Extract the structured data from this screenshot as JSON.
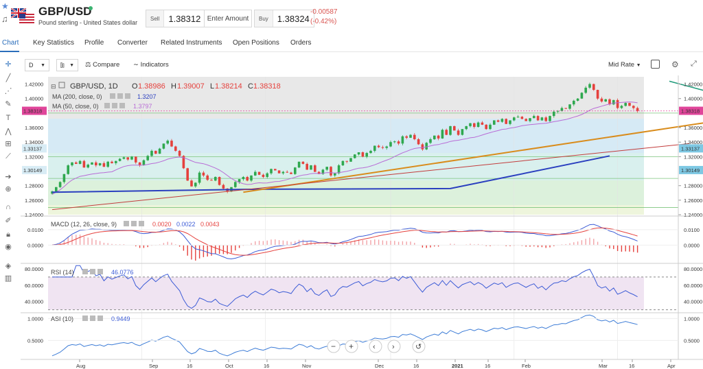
{
  "header": {
    "symbol": "GBP/USD",
    "description": "Pound sterling - United States dollar",
    "sell_label": "Sell",
    "sell_price": "1.38312",
    "enter_amount": "Enter Amount",
    "buy_label": "Buy",
    "buy_price": "1.38324",
    "change_abs": "-0.00587",
    "change_pct": "(-0.42%)"
  },
  "tabs": [
    {
      "label": "Chart"
    },
    {
      "label": "Key Statistics"
    },
    {
      "label": "Profile"
    },
    {
      "label": "Converter"
    },
    {
      "label": "Related Instruments"
    },
    {
      "label": "Open Positions"
    },
    {
      "label": "Orders"
    }
  ],
  "toolbar": {
    "interval": "D",
    "compare": "Compare",
    "indicators": "Indicators",
    "price_type": "Mid Rate"
  },
  "colors": {
    "up": "#2fa84f",
    "down": "#e5413d",
    "ma200": "#2a3fbf",
    "ma50": "#b86bd6",
    "trend_support": "#d98c1c",
    "trend_red": "#c23b3b",
    "trend_resistance": "#1e9a7a",
    "macd": "#3b5bd6",
    "signal": "#e5413d",
    "rsi": "#3b5bd6",
    "asi": "#3b7bd6"
  },
  "legend": {
    "main_title": "GBP/USD, 1D",
    "o_label": "O",
    "o_value": "1.38986",
    "h_label": "H",
    "h_value": "1.39007",
    "l_label": "L",
    "l_value": "1.38214",
    "c_label": "C",
    "c_value": "1.38318",
    "ma200_label": "MA (200, close, 0)",
    "ma200_value": "1.3207",
    "ma50_label": "MA (50, close, 0)",
    "ma50_value": "1.3797",
    "macd_label": "MACD (12, 26, close, 9)",
    "macd_v1": "0.0020",
    "macd_v2": "0.0022",
    "macd_v3": "0.0043",
    "rsi_label": "RSI (14)",
    "rsi_value": "46.0776",
    "asi_label": "ASI (10)",
    "asi_value": "0.9449"
  },
  "price_axis": {
    "ticks": [
      "1.42000",
      "1.40000",
      "1.36000",
      "1.34000",
      "1.32000",
      "1.28000",
      "1.26000",
      "1.24000"
    ],
    "badges": [
      {
        "text": "1.38318",
        "value": 1.38318,
        "color": "#e0459a"
      },
      {
        "text": "1.33137",
        "value": 1.33137,
        "color": "#7ec8e3"
      },
      {
        "text": "1.30149",
        "value": 1.30149,
        "color": "#7ec8e3"
      }
    ],
    "left_badges": [
      {
        "text": "1.38318",
        "value": 1.38318,
        "color": "#e0459a"
      },
      {
        "text": "1.33137",
        "value": 1.33137,
        "color": "#d8ecf5"
      },
      {
        "text": "1.30149",
        "value": 1.30149,
        "color": "#d8ecf5"
      }
    ]
  },
  "macd_axis": {
    "ticks": [
      "0.0100",
      "0.0000"
    ]
  },
  "rsi_axis": {
    "ticks": [
      "80.0000",
      "60.0000",
      "40.0000"
    ]
  },
  "asi_axis": {
    "ticks": [
      "1.0000",
      "0.5000"
    ]
  },
  "time_axis": {
    "labels": [
      "Aug",
      "Sep",
      "16",
      "Oct",
      "16",
      "Nov",
      "Dec",
      "16",
      "2021",
      "16",
      "Feb",
      "Mar",
      "16",
      "Apr"
    ]
  },
  "chart_data": {
    "type": "candlestick",
    "symbol": "GBP/USD",
    "interval": "1D",
    "ylim": [
      1.24,
      1.43
    ],
    "price_zones": [
      1.25,
      1.29,
      1.32,
      1.38
    ],
    "closes": [
      1.272,
      1.278,
      1.285,
      1.296,
      1.308,
      1.312,
      1.31,
      1.314,
      1.305,
      1.309,
      1.312,
      1.308,
      1.311,
      1.306,
      1.313,
      1.311,
      1.314,
      1.317,
      1.319,
      1.316,
      1.32,
      1.312,
      1.308,
      1.315,
      1.321,
      1.328,
      1.324,
      1.331,
      1.338,
      1.342,
      1.334,
      1.328,
      1.321,
      1.304,
      1.287,
      1.279,
      1.284,
      1.298,
      1.294,
      1.288,
      1.287,
      1.292,
      1.281,
      1.276,
      1.272,
      1.278,
      1.285,
      1.289,
      1.292,
      1.287,
      1.294,
      1.299,
      1.295,
      1.292,
      1.297,
      1.303,
      1.301,
      1.297,
      1.299,
      1.298,
      1.296,
      1.305,
      1.313,
      1.31,
      1.302,
      1.308,
      1.299,
      1.296,
      1.302,
      1.306,
      1.294,
      1.297,
      1.308,
      1.314,
      1.313,
      1.318,
      1.323,
      1.326,
      1.32,
      1.325,
      1.328,
      1.335,
      1.333,
      1.332,
      1.334,
      1.34,
      1.341,
      1.338,
      1.348,
      1.346,
      1.35,
      1.344,
      1.337,
      1.33,
      1.339,
      1.344,
      1.349,
      1.345,
      1.357,
      1.35,
      1.362,
      1.356,
      1.35,
      1.358,
      1.362,
      1.366,
      1.361,
      1.367,
      1.364,
      1.358,
      1.364,
      1.37,
      1.368,
      1.372,
      1.365,
      1.37,
      1.374,
      1.375,
      1.372,
      1.369,
      1.373,
      1.376,
      1.37,
      1.374,
      1.369,
      1.376,
      1.382,
      1.383,
      1.387,
      1.386,
      1.392,
      1.397,
      1.4,
      1.408,
      1.415,
      1.42,
      1.412,
      1.4,
      1.396,
      1.399,
      1.392,
      1.398,
      1.387,
      1.39,
      1.394,
      1.39,
      1.387,
      1.383
    ],
    "ma200_endpoints": [
      [
        0,
        1.271
      ],
      [
        50,
        1.275
      ],
      [
        100,
        1.276
      ],
      [
        140,
        1.321
      ]
    ],
    "trendlines": [
      {
        "name": "support",
        "from": [
          48,
          1.271
        ],
        "to": [
          180,
          1.38
        ]
      },
      {
        "name": "red",
        "from": [
          0,
          1.247
        ],
        "to": [
          160,
          1.338
        ]
      },
      {
        "name": "resistance",
        "from": [
          155,
          1.424
        ],
        "to": [
          180,
          1.387
        ]
      }
    ],
    "macd_ylim": [
      -0.011,
      0.018
    ],
    "rsi_ylim": [
      28,
      85
    ],
    "rsi_bands": [
      70,
      30
    ],
    "asi_ylim": [
      0.1,
      1.1
    ]
  }
}
